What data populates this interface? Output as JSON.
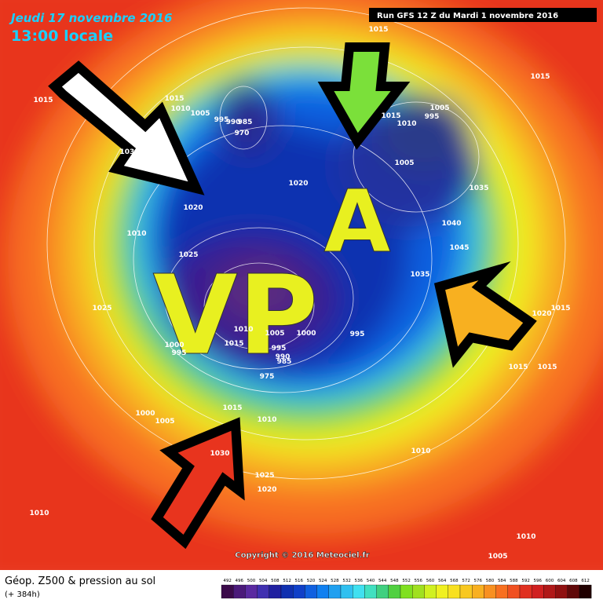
{
  "header": {
    "date": "Jeudi 17 novembre 2016",
    "time": "13:00 locale",
    "run": "Run GFS 12 Z du Mardi 1 novembre 2016"
  },
  "annotations": {
    "low": "VP",
    "high": "A"
  },
  "isobar_labels": [
    "1015",
    "1015",
    "1015",
    "1015",
    "1010",
    "1005",
    "995",
    "990",
    "985",
    "970",
    "1005",
    "995",
    "1015",
    "1010",
    "1030",
    "1020",
    "1020",
    "1005",
    "1035",
    "1040",
    "1045",
    "1035",
    "1010",
    "1025",
    "1025",
    "1020",
    "1015",
    "1010",
    "1005",
    "1000",
    "995",
    "995",
    "990",
    "985",
    "1015",
    "1000",
    "995",
    "975",
    "1000",
    "1005",
    "1015",
    "1010",
    "1030",
    "1025",
    "1020",
    "1010",
    "1015",
    "1015",
    "1010",
    "1010",
    "1005"
  ],
  "footer": {
    "title": "Géop. Z500 & pression au sol",
    "lead": "(+ 384h)",
    "copyright": "Copyright © 2016 Meteociel.fr"
  },
  "legend": {
    "values": [
      492,
      496,
      500,
      504,
      508,
      512,
      516,
      520,
      524,
      528,
      532,
      536,
      540,
      544,
      548,
      552,
      556,
      560,
      564,
      568,
      572,
      576,
      580,
      584,
      588,
      592,
      596,
      600,
      604,
      608,
      612
    ],
    "colors": [
      "#3b0a4a",
      "#4b1a7a",
      "#5a2aa0",
      "#4030b0",
      "#2020a0",
      "#1030b0",
      "#1040c8",
      "#1060e0",
      "#1080f0",
      "#20a0f0",
      "#30c0f0",
      "#40e0f0",
      "#40e0c0",
      "#40d080",
      "#50d040",
      "#80e020",
      "#a0e020",
      "#d0f020",
      "#f0f020",
      "#f8e020",
      "#f8c820",
      "#f8b020",
      "#f89020",
      "#f87020",
      "#f05020",
      "#e03020",
      "#d02020",
      "#b01818",
      "#901010",
      "#600808",
      "#200000"
    ]
  }
}
